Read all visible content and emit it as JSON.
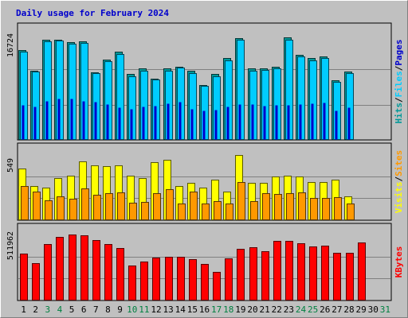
{
  "chart_data": {
    "type": "bar",
    "title": "Daily usage for February 2024",
    "days": [
      "1",
      "2",
      "3",
      "4",
      "5",
      "6",
      "7",
      "8",
      "9",
      "10",
      "11",
      "12",
      "13",
      "14",
      "15",
      "16",
      "17",
      "18",
      "19",
      "20",
      "21",
      "22",
      "23",
      "24",
      "25",
      "26",
      "27",
      "28",
      "29",
      "30",
      "31"
    ],
    "weekend_days": [
      "3",
      "4",
      "10",
      "11",
      "17",
      "18",
      "24",
      "25",
      "31"
    ],
    "panels": [
      {
        "id": "hits",
        "max_label": "16724",
        "ymax": 16724,
        "series": [
          {
            "name": "Hits",
            "color": "#009999",
            "values": [
              14200,
              11000,
              15900,
              15900,
              15500,
              15600,
              10700,
              12700,
              13900,
              10400,
              11300,
              9700,
              11300,
              11600,
              10900,
              8700,
              10400,
              12900,
              16100,
              11300,
              11300,
              11600,
              16200,
              13500,
              12900,
              13200,
              9400,
              10800
            ]
          },
          {
            "name": "Files",
            "color": "#00ccff",
            "values": [
              14000,
              10800,
              15600,
              15700,
              15200,
              15300,
              10500,
              12400,
              13600,
              10100,
              11000,
              9500,
              11000,
              11400,
              10600,
              8500,
              10100,
              12600,
              15800,
              11000,
              11100,
              11300,
              15900,
              13200,
              12600,
              12900,
              9200,
              10600
            ]
          },
          {
            "name": "Pages",
            "color": "#0000cc",
            "values": [
              5500,
              5300,
              6100,
              6600,
              6500,
              6200,
              6000,
              5700,
              5200,
              4900,
              5300,
              5400,
              5800,
              6000,
              4900,
              4700,
              4800,
              5300,
              5700,
              5600,
              5400,
              5500,
              5500,
              5600,
              5800,
              5900,
              4700,
              5100
            ]
          }
        ],
        "legend": [
          {
            "text": "Hits",
            "color": "#009999"
          },
          {
            "text": "/",
            "color": "#000000"
          },
          {
            "text": "Files",
            "color": "#00ccff"
          },
          {
            "text": "/",
            "color": "#000000"
          },
          {
            "text": "Pages",
            "color": "#0000cc"
          }
        ]
      },
      {
        "id": "visits",
        "max_label": "549",
        "ymax": 549,
        "series": [
          {
            "name": "Visits",
            "color": "#ffff00",
            "values": [
              430,
              286,
              270,
              352,
              368,
              490,
              454,
              448,
              458,
              372,
              349,
              480,
              506,
              287,
              312,
              270,
              338,
              236,
              540,
              314,
              312,
              367,
              368,
              366,
              315,
              320,
              336,
              198
            ]
          },
          {
            "name": "Sites",
            "color": "#ff9900",
            "values": [
              284,
              240,
              164,
              198,
              181,
              265,
              214,
              225,
              232,
              148,
              150,
              226,
              257,
              138,
              238,
              140,
              157,
              139,
              316,
              158,
              227,
              218,
              227,
              232,
              188,
              188,
              189,
              141
            ]
          }
        ],
        "legend": [
          {
            "text": "Visits",
            "color": "#ffff00"
          },
          {
            "text": "/",
            "color": "#000000"
          },
          {
            "text": "Sites",
            "color": "#ff9900"
          }
        ]
      },
      {
        "id": "kbytes",
        "max_label": "511962",
        "ymax": 511962,
        "series": [
          {
            "name": "KBytes",
            "color": "#ff0000",
            "values": [
              365000,
              290000,
              438000,
              495000,
              510000,
              505000,
              470000,
              436000,
              410000,
              270000,
              300000,
              334000,
              341000,
              337000,
              320000,
              286000,
              225000,
              325000,
              404000,
              414000,
              385000,
              462000,
              462000,
              447000,
              417000,
              425000,
              368000,
              368000,
              448000
            ]
          }
        ],
        "legend": [
          {
            "text": "KBytes",
            "color": "#ff0000"
          }
        ]
      }
    ]
  }
}
